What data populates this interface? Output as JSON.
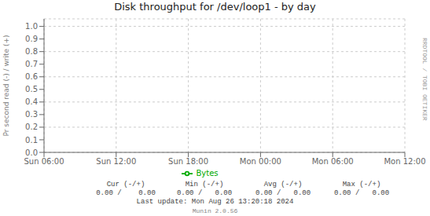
{
  "chart_data": {
    "type": "line",
    "title": "Disk throughput for /dev/loop1 - by day",
    "y_label": "Pr second read (-) / write (+)",
    "categories": [
      "Sun 06:00",
      "Sun 12:00",
      "Sun 18:00",
      "Mon 00:00",
      "Mon 06:00",
      "Mon 12:00"
    ],
    "series": [
      {
        "name": "Bytes",
        "color": "#00aa00",
        "values": [
          null,
          null,
          null,
          null,
          null,
          null
        ]
      }
    ],
    "ylim": [
      0.0,
      1.06
    ],
    "yticks": [
      {
        "value": 0.0,
        "label": "0.0"
      },
      0.1,
      0.2,
      0.3,
      0.4,
      0.5,
      0.6,
      0.7,
      0.8,
      0.9,
      {
        "value": 1.0,
        "label": "1.0"
      }
    ],
    "grid": true,
    "legend": "bottom",
    "annotations": [
      "Cur (-/+)",
      "Min (-/+)",
      "Avg (-/+)",
      "Max (-/+)",
      "0.00 /    0.00",
      "0.00 /   0.00",
      "0.00 /   0.00",
      "0.00 /   0.00",
      "Last update: Mon Aug 26 13:20:18 2024",
      "Munin 2.0.56",
      "RRDTOOL / TOBI OETIKER"
    ]
  }
}
